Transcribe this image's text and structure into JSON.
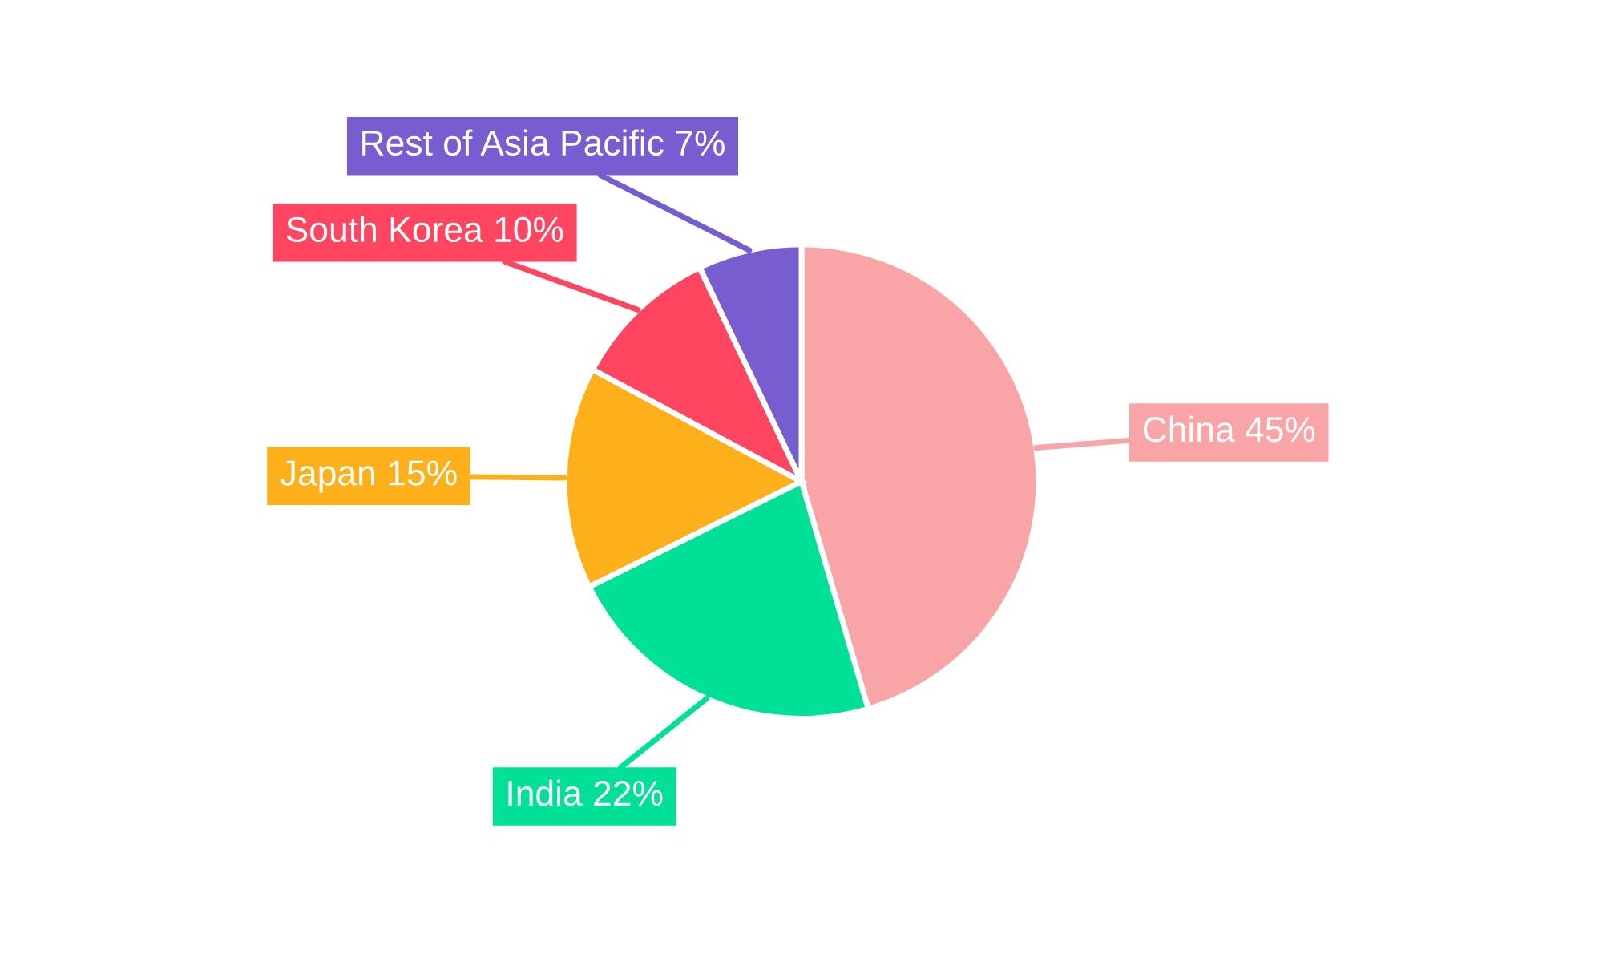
{
  "chart_data": {
    "type": "pie",
    "categories": [
      "China",
      "India",
      "Japan",
      "South Korea",
      "Rest of Asia Pacific"
    ],
    "values": [
      45,
      22,
      15,
      10,
      7
    ],
    "value_labels": [
      "45%",
      "22%",
      "15%",
      "10%",
      "7%"
    ],
    "colors": [
      "#f9a5a8",
      "#00e096",
      "#fdb01a",
      "#ff4560",
      "#775dd0"
    ],
    "legend": false
  }
}
